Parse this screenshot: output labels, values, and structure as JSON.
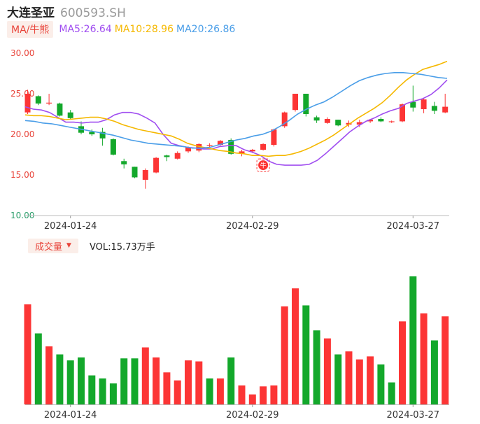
{
  "header": {
    "stock_name": "大连圣亚",
    "stock_code": "600593.SH"
  },
  "ma_legend": {
    "selector_label": "MA/牛熊",
    "items": [
      {
        "label": "MA5:26.64",
        "color": "#a04ef0"
      },
      {
        "label": "MA10:28.96",
        "color": "#f5b800"
      },
      {
        "label": "MA20:26.86",
        "color": "#4a9ee8"
      }
    ]
  },
  "volume_legend": {
    "selector_label": "成交量",
    "caret": "▼",
    "vol_label": "VOL:15.73万手"
  },
  "colors": {
    "up": "#fc3535",
    "down": "#13a82b",
    "ma5": "#a04ef0",
    "ma10": "#f5b800",
    "ma20": "#4a9ee8",
    "axis_text": "#e8443a",
    "axis_text_low": "#2a9d6a"
  },
  "marker": {
    "label": "牛",
    "date": "2024-02-29"
  },
  "chart_data": [
    {
      "type": "candlestick",
      "title": "",
      "x_tick_labels": [
        "2024-01-24",
        "2024-02-29",
        "2024-03-27"
      ],
      "y_tick_labels": [
        "30.00",
        "25.00",
        "20.00",
        "15.00",
        "10.00"
      ],
      "ylim": [
        10,
        30
      ],
      "grid": false,
      "candles": [
        {
          "o": 22.7,
          "h": 25.5,
          "l": 22.5,
          "c": 25.0
        },
        {
          "o": 24.7,
          "h": 24.8,
          "l": 23.6,
          "c": 23.8
        },
        {
          "o": 23.8,
          "h": 25.0,
          "l": 23.6,
          "c": 23.9
        },
        {
          "o": 23.8,
          "h": 23.9,
          "l": 22.2,
          "c": 22.3
        },
        {
          "o": 22.7,
          "h": 23.0,
          "l": 21.8,
          "c": 22.0
        },
        {
          "o": 21.0,
          "h": 21.6,
          "l": 20.0,
          "c": 20.2
        },
        {
          "o": 20.3,
          "h": 20.6,
          "l": 19.8,
          "c": 20.0
        },
        {
          "o": 20.3,
          "h": 20.8,
          "l": 18.6,
          "c": 19.5
        },
        {
          "o": 19.4,
          "h": 19.5,
          "l": 17.4,
          "c": 17.5
        },
        {
          "o": 16.7,
          "h": 17.0,
          "l": 15.8,
          "c": 16.3
        },
        {
          "o": 16.0,
          "h": 16.0,
          "l": 14.6,
          "c": 14.7
        },
        {
          "o": 14.4,
          "h": 15.8,
          "l": 13.3,
          "c": 15.6
        },
        {
          "o": 15.3,
          "h": 17.2,
          "l": 15.2,
          "c": 17.1
        },
        {
          "o": 17.4,
          "h": 17.5,
          "l": 16.7,
          "c": 17.2
        },
        {
          "o": 17.0,
          "h": 17.9,
          "l": 16.9,
          "c": 17.7
        },
        {
          "o": 17.9,
          "h": 18.5,
          "l": 17.7,
          "c": 18.4
        },
        {
          "o": 18.0,
          "h": 18.9,
          "l": 17.8,
          "c": 18.8
        },
        {
          "o": 18.6,
          "h": 18.9,
          "l": 18.4,
          "c": 18.7
        },
        {
          "o": 18.7,
          "h": 19.3,
          "l": 18.6,
          "c": 19.2
        },
        {
          "o": 19.3,
          "h": 19.5,
          "l": 17.5,
          "c": 17.6
        },
        {
          "o": 17.6,
          "h": 18.1,
          "l": 17.3,
          "c": 17.9
        },
        {
          "o": 17.9,
          "h": 18.2,
          "l": 17.7,
          "c": 18.1
        },
        {
          "o": 18.1,
          "h": 18.9,
          "l": 18.0,
          "c": 18.8
        },
        {
          "o": 18.7,
          "h": 20.7,
          "l": 18.5,
          "c": 20.6
        },
        {
          "o": 21.0,
          "h": 22.8,
          "l": 20.8,
          "c": 22.7
        },
        {
          "o": 23.0,
          "h": 25.0,
          "l": 22.8,
          "c": 25.0
        },
        {
          "o": 25.0,
          "h": 25.0,
          "l": 22.2,
          "c": 22.5
        },
        {
          "o": 22.1,
          "h": 22.3,
          "l": 21.4,
          "c": 21.7
        },
        {
          "o": 21.4,
          "h": 22.1,
          "l": 21.3,
          "c": 21.9
        },
        {
          "o": 21.8,
          "h": 21.8,
          "l": 21.0,
          "c": 21.1
        },
        {
          "o": 21.2,
          "h": 21.7,
          "l": 20.9,
          "c": 21.4
        },
        {
          "o": 21.2,
          "h": 21.8,
          "l": 20.9,
          "c": 21.5
        },
        {
          "o": 21.6,
          "h": 21.9,
          "l": 21.4,
          "c": 21.8
        },
        {
          "o": 21.9,
          "h": 22.1,
          "l": 21.5,
          "c": 21.6
        },
        {
          "o": 21.5,
          "h": 21.7,
          "l": 21.4,
          "c": 21.6
        },
        {
          "o": 21.6,
          "h": 23.8,
          "l": 21.5,
          "c": 23.7
        },
        {
          "o": 24.0,
          "h": 26.0,
          "l": 22.8,
          "c": 23.3
        },
        {
          "o": 23.1,
          "h": 24.4,
          "l": 22.6,
          "c": 24.3
        },
        {
          "o": 23.5,
          "h": 24.0,
          "l": 22.5,
          "c": 22.9
        },
        {
          "o": 22.7,
          "h": 25.0,
          "l": 22.6,
          "c": 23.4
        }
      ],
      "ma5": [
        23.4,
        23.1,
        23.0,
        22.7,
        22.1,
        21.5,
        21.5,
        21.4,
        21.5,
        21.5,
        21.8,
        22.4,
        22.7,
        22.7,
        22.5,
        22.0,
        21.4,
        20.0,
        18.9,
        18.6,
        18.4,
        18.3,
        18.2,
        18.2,
        18.5,
        18.6,
        18.6,
        18.1,
        17.8,
        17.4,
        16.7,
        16.3,
        16.2,
        16.2,
        16.2,
        16.3,
        16.8,
        17.6,
        18.5,
        19.4,
        20.3,
        21.0,
        21.6,
        22.0,
        22.5,
        22.9,
        23.2,
        23.8,
        24.1,
        24.4,
        24.9,
        25.7,
        26.7
      ],
      "ma10": [
        22.4,
        22.3,
        22.3,
        22.2,
        22.0,
        21.8,
        21.9,
        22.0,
        22.1,
        22.1,
        21.9,
        21.6,
        21.2,
        20.9,
        20.6,
        20.4,
        20.2,
        20.0,
        19.8,
        19.4,
        18.9,
        18.6,
        18.4,
        18.2,
        18.0,
        17.9,
        17.7,
        17.6,
        17.4,
        17.4,
        17.3,
        17.4,
        17.4,
        17.6,
        17.9,
        18.3,
        18.8,
        19.3,
        19.9,
        20.6,
        21.3,
        22.0,
        22.6,
        23.2,
        23.9,
        24.8,
        25.8,
        26.7,
        27.4,
        28.0,
        28.3,
        28.6,
        29.0
      ],
      "ma20": [
        21.7,
        21.6,
        21.4,
        21.3,
        21.1,
        20.9,
        20.7,
        20.5,
        20.3,
        20.1,
        19.9,
        19.6,
        19.3,
        19.1,
        18.9,
        18.8,
        18.7,
        18.6,
        18.5,
        18.3,
        18.3,
        18.4,
        18.7,
        19.0,
        19.3,
        19.5,
        19.8,
        20.0,
        20.4,
        21.0,
        21.7,
        22.5,
        23.1,
        23.6,
        24.0,
        24.6,
        25.3,
        26.0,
        26.6,
        27.0,
        27.3,
        27.5,
        27.6,
        27.6,
        27.5,
        27.4,
        27.2,
        27.0,
        26.9
      ]
    },
    {
      "type": "bar",
      "title": "",
      "x_tick_labels": [
        "2024-01-24",
        "2024-02-29",
        "2024-03-27"
      ],
      "values": [
        100,
        71,
        58,
        50,
        44,
        47,
        29,
        26,
        21,
        46,
        46,
        57,
        47,
        32,
        24,
        44,
        43,
        26,
        26,
        47,
        19,
        10,
        18,
        19,
        98,
        116,
        99,
        74,
        66,
        50,
        53,
        45,
        48,
        40,
        22,
        83,
        128,
        91,
        64,
        88
      ],
      "directions": [
        "up",
        "down",
        "up",
        "down",
        "down",
        "down",
        "down",
        "down",
        "down",
        "down",
        "down",
        "up",
        "up",
        "up",
        "up",
        "up",
        "up",
        "down",
        "up",
        "down",
        "up",
        "up",
        "up",
        "up",
        "up",
        "up",
        "down",
        "down",
        "up",
        "down",
        "up",
        "up",
        "up",
        "down",
        "down",
        "up",
        "down",
        "up",
        "down",
        "up"
      ]
    }
  ]
}
